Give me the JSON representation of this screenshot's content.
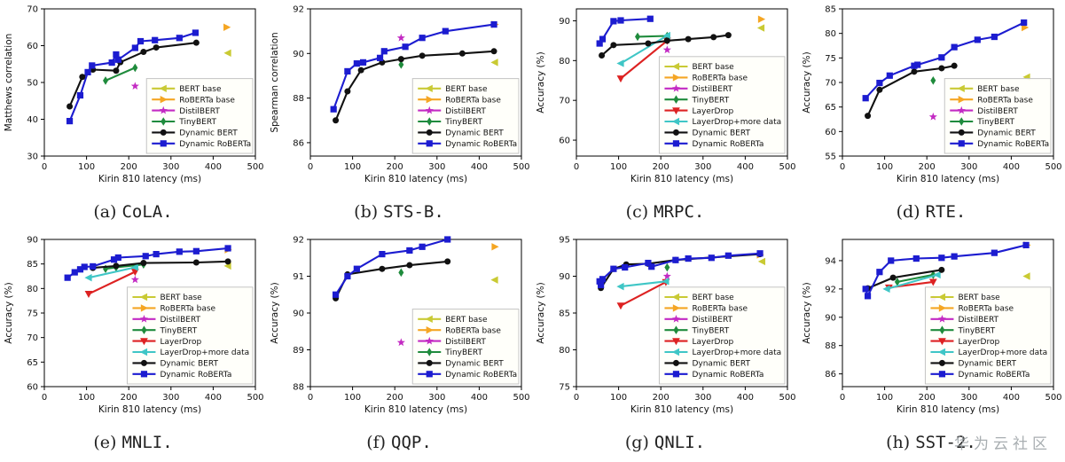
{
  "watermark": {
    "text": "华为云社区",
    "color": "#9aa0a4"
  },
  "series_styles": {
    "BERT base": {
      "color": "#c9ca33",
      "marker": "tri-left",
      "line": false
    },
    "RoBERTa base": {
      "color": "#f5a623",
      "marker": "tri-right",
      "line": false
    },
    "DistilBERT": {
      "color": "#c32ac3",
      "marker": "star",
      "line": false
    },
    "TinyBERT": {
      "color": "#1f8b3c",
      "marker": "diamond",
      "line": true
    },
    "LayerDrop": {
      "color": "#dd2222",
      "marker": "tri-down",
      "line": true
    },
    "LayerDrop+more data": {
      "color": "#3fc6c6",
      "marker": "tri-left",
      "line": true
    },
    "Dynamic BERT": {
      "color": "#111111",
      "marker": "circle",
      "line": true
    },
    "Dynamic RoBERTa": {
      "color": "#1c1cd0",
      "marker": "square",
      "line": true
    }
  },
  "chart_data": [
    {
      "type": "line",
      "caption_prefix": "(a)",
      "caption_task": "CoLA.",
      "xlabel": "Kirin 810 latency (ms)",
      "ylabel": "Matthews correlation",
      "xlim": [
        0,
        500
      ],
      "xticks": [
        0,
        100,
        200,
        300,
        400,
        500
      ],
      "ylim": [
        30,
        70
      ],
      "yticks": [
        30,
        40,
        50,
        60,
        70
      ],
      "legend_position": "lower right",
      "legend": [
        "BERT base",
        "RoBERTa base",
        "DistilBERT",
        "TinyBERT",
        "Dynamic BERT",
        "Dynamic RoBERTa"
      ],
      "series": [
        {
          "name": "BERT base",
          "x": [
            435
          ],
          "y": [
            58
          ]
        },
        {
          "name": "RoBERTa base",
          "x": [
            432
          ],
          "y": [
            65
          ]
        },
        {
          "name": "DistilBERT",
          "x": [
            215
          ],
          "y": [
            49
          ]
        },
        {
          "name": "TinyBERT",
          "x": [
            145,
            215
          ],
          "y": [
            50.5,
            54
          ]
        },
        {
          "name": "Dynamic BERT",
          "x": [
            60,
            90,
            115,
            170,
            180,
            235,
            265,
            360
          ],
          "y": [
            43.5,
            51.5,
            53.5,
            53.2,
            55.5,
            58.3,
            59.5,
            60.8
          ]
        },
        {
          "name": "Dynamic RoBERTa",
          "x": [
            60,
            85,
            103,
            113,
            160,
            170,
            175,
            215,
            228,
            262,
            320,
            358
          ],
          "y": [
            39.5,
            46.5,
            52.8,
            54.6,
            55.4,
            57.6,
            56.2,
            59.4,
            61.2,
            61.5,
            62.1,
            63.5
          ]
        }
      ]
    },
    {
      "type": "line",
      "caption_prefix": "(b)",
      "caption_task": "STS-B.",
      "xlabel": "Kirin 810 latency (ms)",
      "ylabel": "Spearman correlation",
      "xlim": [
        0,
        500
      ],
      "xticks": [
        0,
        100,
        200,
        300,
        400,
        500
      ],
      "ylim": [
        85.4,
        92
      ],
      "yticks": [
        86,
        88,
        90,
        92
      ],
      "legend_position": "lower right",
      "legend": [
        "BERT base",
        "RoBERTa base",
        "DistilBERT",
        "TinyBERT",
        "Dynamic BERT",
        "Dynamic RoBERTa"
      ],
      "series": [
        {
          "name": "BERT base",
          "x": [
            437
          ],
          "y": [
            89.6
          ]
        },
        {
          "name": "RoBERTa base",
          "x": [
            437
          ],
          "y": [
            91.3
          ]
        },
        {
          "name": "DistilBERT",
          "x": [
            215
          ],
          "y": [
            90.7
          ]
        },
        {
          "name": "TinyBERT",
          "x": [
            215
          ],
          "y": [
            89.5
          ]
        },
        {
          "name": "Dynamic BERT",
          "x": [
            60,
            88,
            120,
            170,
            215,
            265,
            360,
            435
          ],
          "y": [
            87.0,
            88.3,
            89.25,
            89.6,
            89.75,
            89.9,
            90.0,
            90.1
          ]
        },
        {
          "name": "Dynamic RoBERTa",
          "x": [
            55,
            88,
            110,
            125,
            165,
            175,
            225,
            265,
            320,
            435
          ],
          "y": [
            87.5,
            89.2,
            89.55,
            89.6,
            89.8,
            90.1,
            90.3,
            90.7,
            91.0,
            91.3
          ]
        }
      ]
    },
    {
      "type": "line",
      "caption_prefix": "(c)",
      "caption_task": "MRPC.",
      "xlabel": "Kirin 810 latency (ms)",
      "ylabel": "Accuracy (%)",
      "xlim": [
        0,
        500
      ],
      "xticks": [
        0,
        100,
        200,
        300,
        400,
        500
      ],
      "ylim": [
        56,
        93
      ],
      "yticks": [
        60,
        70,
        80,
        90
      ],
      "legend_position": "lower right",
      "legend": [
        "BERT base",
        "RoBERTa base",
        "DistilBERT",
        "TinyBERT",
        "LayerDrop",
        "LayerDrop+more data",
        "Dynamic BERT",
        "Dynamic RoBERTa"
      ],
      "series": [
        {
          "name": "BERT base",
          "x": [
            438
          ],
          "y": [
            88.2
          ]
        },
        {
          "name": "RoBERTa base",
          "x": [
            438
          ],
          "y": [
            90.4
          ]
        },
        {
          "name": "DistilBERT",
          "x": [
            215
          ],
          "y": [
            82.7
          ]
        },
        {
          "name": "TinyBERT",
          "x": [
            145,
            215
          ],
          "y": [
            86.0,
            86.2
          ]
        },
        {
          "name": "LayerDrop",
          "x": [
            105,
            215
          ],
          "y": [
            75.5,
            85.0
          ]
        },
        {
          "name": "LayerDrop+more data",
          "x": [
            105,
            215
          ],
          "y": [
            79.3,
            86.3
          ]
        },
        {
          "name": "Dynamic BERT",
          "x": [
            60,
            88,
            170,
            215,
            265,
            325,
            360
          ],
          "y": [
            81.3,
            83.9,
            84.3,
            85.0,
            85.4,
            85.9,
            86.4
          ]
        },
        {
          "name": "Dynamic RoBERTa",
          "x": [
            55,
            62,
            88,
            105,
            175
          ],
          "y": [
            84.3,
            85.4,
            89.9,
            90.1,
            90.5
          ]
        }
      ]
    },
    {
      "type": "line",
      "caption_prefix": "(d)",
      "caption_task": "RTE.",
      "xlabel": "Kirin 810 latency (ms)",
      "ylabel": "Accuracy (%)",
      "xlim": [
        0,
        500
      ],
      "xticks": [
        0,
        100,
        200,
        300,
        400,
        500
      ],
      "ylim": [
        55,
        85
      ],
      "yticks": [
        55,
        60,
        65,
        70,
        75,
        80,
        85
      ],
      "legend_position": "lower right",
      "legend": [
        "BERT base",
        "RoBERTa base",
        "DistilBERT",
        "TinyBERT",
        "Dynamic BERT",
        "Dynamic RoBERTa"
      ],
      "series": [
        {
          "name": "BERT base",
          "x": [
            437
          ],
          "y": [
            71.1
          ]
        },
        {
          "name": "RoBERTa base",
          "x": [
            432
          ],
          "y": [
            81.2
          ]
        },
        {
          "name": "DistilBERT",
          "x": [
            215
          ],
          "y": [
            63
          ]
        },
        {
          "name": "TinyBERT",
          "x": [
            215
          ],
          "y": [
            70.4
          ]
        },
        {
          "name": "Dynamic BERT",
          "x": [
            60,
            88,
            170,
            235,
            265
          ],
          "y": [
            63.2,
            68.5,
            72.2,
            72.9,
            73.4
          ]
        },
        {
          "name": "Dynamic RoBERTa",
          "x": [
            55,
            88,
            112,
            170,
            178,
            235,
            265,
            320,
            360,
            430
          ],
          "y": [
            66.8,
            69.9,
            71.4,
            73.4,
            73.6,
            75.1,
            77.2,
            78.7,
            79.3,
            82.2
          ]
        }
      ]
    },
    {
      "type": "line",
      "caption_prefix": "(e)",
      "caption_task": "MNLI.",
      "xlabel": "Kirin 810 latency (ms)",
      "ylabel": "Accuracy (%)",
      "xlim": [
        0,
        500
      ],
      "xticks": [
        0,
        100,
        200,
        300,
        400,
        500
      ],
      "ylim": [
        60,
        90
      ],
      "yticks": [
        60,
        65,
        70,
        75,
        80,
        85,
        90
      ],
      "legend_position": "lower right",
      "legend": [
        "BERT base",
        "RoBERTa base",
        "DistilBERT",
        "TinyBERT",
        "LayerDrop",
        "LayerDrop+more data",
        "Dynamic BERT",
        "Dynamic RoBERTa"
      ],
      "series": [
        {
          "name": "BERT base",
          "x": [
            435
          ],
          "y": [
            84.6
          ]
        },
        {
          "name": "RoBERTa base",
          "x": [
            435
          ],
          "y": [
            87.9
          ]
        },
        {
          "name": "DistilBERT",
          "x": [
            215
          ],
          "y": [
            81.8
          ]
        },
        {
          "name": "TinyBERT",
          "x": [
            145,
            170,
            235
          ],
          "y": [
            84.0,
            84.3,
            84.9
          ]
        },
        {
          "name": "LayerDrop",
          "x": [
            105,
            215
          ],
          "y": [
            78.9,
            83.4
          ]
        },
        {
          "name": "LayerDrop+more data",
          "x": [
            105,
            215
          ],
          "y": [
            82.2,
            84.3
          ]
        },
        {
          "name": "Dynamic BERT",
          "x": [
            115,
            170,
            235,
            360,
            435
          ],
          "y": [
            84.2,
            84.6,
            85.2,
            85.3,
            85.5
          ]
        },
        {
          "name": "Dynamic RoBERTa",
          "x": [
            55,
            72,
            85,
            95,
            115,
            165,
            175,
            240,
            265,
            320,
            360,
            435
          ],
          "y": [
            82.2,
            83.3,
            83.9,
            84.4,
            84.5,
            85.9,
            86.3,
            86.6,
            87.0,
            87.5,
            87.6,
            88.2
          ]
        }
      ]
    },
    {
      "type": "line",
      "caption_prefix": "(f)",
      "caption_task": "QQP.",
      "xlabel": "Kirin 810 latency (ms)",
      "ylabel": "Accuracy (%)",
      "xlim": [
        0,
        500
      ],
      "xticks": [
        0,
        100,
        200,
        300,
        400,
        500
      ],
      "ylim": [
        88,
        92
      ],
      "yticks": [
        88,
        89,
        90,
        91,
        92
      ],
      "legend_position": "lower right",
      "legend": [
        "BERT base",
        "RoBERTa base",
        "DistilBERT",
        "TinyBERT",
        "Dynamic BERT",
        "Dynamic RoBERTa"
      ],
      "series": [
        {
          "name": "BERT base",
          "x": [
            437
          ],
          "y": [
            90.9
          ]
        },
        {
          "name": "RoBERTa base",
          "x": [
            437
          ],
          "y": [
            91.8
          ]
        },
        {
          "name": "DistilBERT",
          "x": [
            215
          ],
          "y": [
            89.2
          ]
        },
        {
          "name": "TinyBERT",
          "x": [
            215
          ],
          "y": [
            91.1
          ]
        },
        {
          "name": "Dynamic BERT",
          "x": [
            60,
            88,
            170,
            235,
            325
          ],
          "y": [
            90.4,
            91.05,
            91.2,
            91.3,
            91.4
          ]
        },
        {
          "name": "Dynamic RoBERTa",
          "x": [
            60,
            88,
            110,
            170,
            235,
            265,
            325
          ],
          "y": [
            90.5,
            91.0,
            91.2,
            91.6,
            91.7,
            91.8,
            92.0
          ]
        }
      ]
    },
    {
      "type": "line",
      "caption_prefix": "(g)",
      "caption_task": "QNLI.",
      "xlabel": "Kirin 810 latency (ms)",
      "ylabel": "Accuracy (%)",
      "xlim": [
        0,
        500
      ],
      "xticks": [
        0,
        100,
        200,
        300,
        400,
        500
      ],
      "ylim": [
        75,
        95
      ],
      "yticks": [
        75,
        80,
        85,
        90,
        95
      ],
      "legend_position": "lower right",
      "legend": [
        "BERT base",
        "RoBERTa base",
        "DistilBERT",
        "TinyBERT",
        "LayerDrop",
        "LayerDrop+more data",
        "Dynamic BERT",
        "Dynamic RoBERTa"
      ],
      "series": [
        {
          "name": "BERT base",
          "x": [
            440
          ],
          "y": [
            92.0
          ]
        },
        {
          "name": "RoBERTa base",
          "x": [
            435
          ],
          "y": [
            92.9
          ]
        },
        {
          "name": "DistilBERT",
          "x": [
            215
          ],
          "y": [
            90.0
          ]
        },
        {
          "name": "TinyBERT",
          "x": [
            215
          ],
          "y": [
            91.2
          ]
        },
        {
          "name": "LayerDrop",
          "x": [
            105,
            212
          ],
          "y": [
            86.0,
            89.2
          ]
        },
        {
          "name": "LayerDrop+more data",
          "x": [
            105,
            212
          ],
          "y": [
            88.6,
            89.3
          ]
        },
        {
          "name": "Dynamic BERT",
          "x": [
            58,
            88,
            118,
            170,
            235,
            435
          ],
          "y": [
            88.4,
            91.0,
            91.6,
            91.7,
            92.2,
            93.0
          ]
        },
        {
          "name": "Dynamic RoBERTa",
          "x": [
            55,
            58,
            62,
            88,
            115,
            170,
            178,
            235,
            265,
            320,
            360,
            435
          ],
          "y": [
            89.3,
            88.8,
            89.6,
            91.0,
            91.2,
            91.8,
            91.3,
            92.2,
            92.4,
            92.5,
            92.8,
            93.1
          ]
        }
      ]
    },
    {
      "type": "line",
      "caption_prefix": "(h)",
      "caption_task": "SST-2.",
      "xlabel": "Kirin 810 latency (ms)",
      "ylabel": "Accuracy (%)",
      "xlim": [
        0,
        500
      ],
      "xticks": [
        0,
        100,
        200,
        300,
        400,
        500
      ],
      "ylim": [
        85.1,
        95.5
      ],
      "yticks": [
        86,
        88,
        90,
        92,
        94
      ],
      "legend_position": "lower right",
      "legend": [
        "BERT base",
        "RoBERTa base",
        "DistilBERT",
        "TinyBERT",
        "LayerDrop",
        "LayerDrop+more data",
        "Dynamic BERT",
        "Dynamic RoBERTa"
      ],
      "series": [
        {
          "name": "BERT base",
          "x": [
            437
          ],
          "y": [
            92.9
          ]
        },
        {
          "name": "RoBERTa base",
          "x": [
            437
          ],
          "y": [
            95.1
          ]
        },
        {
          "name": "DistilBERT",
          "x": [
            215
          ],
          "y": [
            91.3
          ]
        },
        {
          "name": "TinyBERT",
          "x": [
            130,
            215
          ],
          "y": [
            92.5,
            93.0
          ]
        },
        {
          "name": "LayerDrop",
          "x": [
            110,
            215
          ],
          "y": [
            92.1,
            92.5
          ]
        },
        {
          "name": "LayerDrop+more data",
          "x": [
            105,
            225
          ],
          "y": [
            92.0,
            93.0
          ]
        },
        {
          "name": "Dynamic BERT",
          "x": [
            60,
            120,
            235
          ],
          "y": [
            92.05,
            92.8,
            93.35
          ]
        },
        {
          "name": "Dynamic RoBERTa",
          "x": [
            55,
            60,
            88,
            115,
            175,
            235,
            265,
            360,
            435
          ],
          "y": [
            92.0,
            91.5,
            93.2,
            94.0,
            94.15,
            94.2,
            94.3,
            94.55,
            95.1
          ]
        }
      ]
    }
  ]
}
